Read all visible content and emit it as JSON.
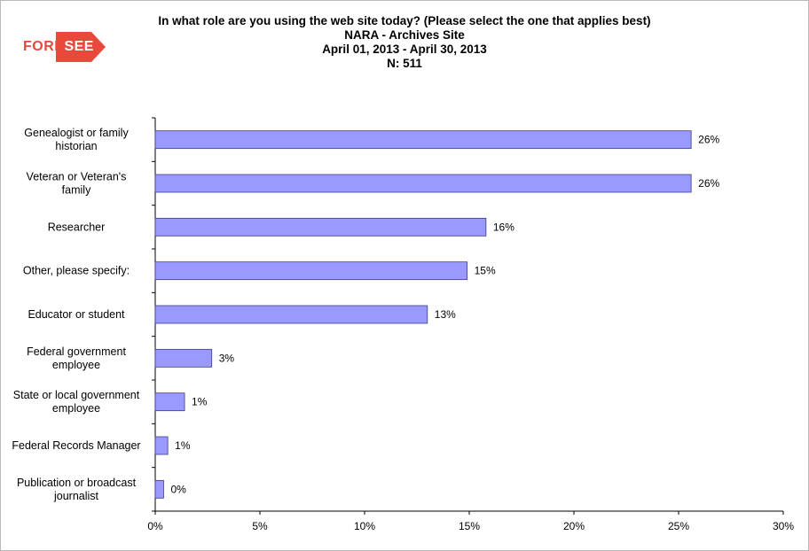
{
  "logo": {
    "part1": "FORE",
    "part2": "SEE"
  },
  "titles": [
    "In what role are you using the web site today? (Please select the one that applies best)",
    "NARA - Archives Site",
    "April 01, 2013 - April 30, 2013",
    "N: 511"
  ],
  "chart_data": {
    "type": "bar",
    "orientation": "horizontal",
    "categories": [
      [
        "Genealogist or family",
        "historian"
      ],
      [
        "Veteran or Veteran's",
        "family"
      ],
      [
        "Researcher"
      ],
      [
        "Other, please specify:"
      ],
      [
        "Educator or student"
      ],
      [
        "Federal government",
        "employee"
      ],
      [
        "State or local government",
        "employee"
      ],
      [
        "Federal Records Manager"
      ],
      [
        "Publication or broadcast",
        "journalist"
      ]
    ],
    "values": [
      25.6,
      25.6,
      15.8,
      14.9,
      13.0,
      2.7,
      1.4,
      0.6,
      0.4
    ],
    "value_labels": [
      "26%",
      "26%",
      "16%",
      "15%",
      "13%",
      "3%",
      "1%",
      "1%",
      "0%"
    ],
    "xlim": [
      0,
      30
    ],
    "xticks": [
      "0%",
      "5%",
      "10%",
      "15%",
      "20%",
      "25%",
      "30%"
    ],
    "bar_color": "#9999ff",
    "grid": false
  }
}
